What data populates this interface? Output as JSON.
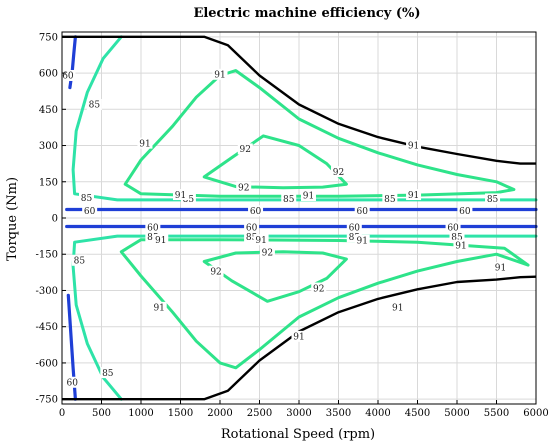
{
  "chart_data": {
    "type": "contour",
    "title": "Electric machine efficiency (%)",
    "xlabel": "Rotational Speed (rpm)",
    "ylabel": "Torque (Nm)",
    "xlim": [
      0,
      6000
    ],
    "ylim": [
      -770,
      770
    ],
    "xticks": [
      0,
      500,
      1000,
      1500,
      2000,
      2500,
      3000,
      3500,
      4000,
      4500,
      5000,
      5500,
      6000
    ],
    "yticks": [
      750,
      600,
      450,
      300,
      150,
      0,
      -150,
      -300,
      -450,
      -600,
      -750
    ],
    "grid": true,
    "colors": {
      "c60": "#1f3fd6",
      "c85": "#2ee3a8",
      "c91": "#2ee38a",
      "c92": "#2ee38a",
      "envelope": "#000000"
    },
    "envelope": [
      {
        "name": "max torque",
        "points": [
          [
            0,
            750
          ],
          [
            1800,
            750
          ],
          [
            2100,
            715
          ],
          [
            2500,
            590
          ],
          [
            3000,
            470
          ],
          [
            3500,
            390
          ],
          [
            4000,
            335
          ],
          [
            4500,
            295
          ],
          [
            5000,
            265
          ],
          [
            5500,
            237
          ],
          [
            5800,
            225
          ],
          [
            6000,
            225
          ]
        ]
      },
      {
        "name": "min torque",
        "points": [
          [
            0,
            -750
          ],
          [
            1800,
            -750
          ],
          [
            2100,
            -715
          ],
          [
            2500,
            -590
          ],
          [
            3000,
            -470
          ],
          [
            3500,
            -390
          ],
          [
            4000,
            -335
          ],
          [
            4500,
            -295
          ],
          [
            5000,
            -265
          ],
          [
            5500,
            -255
          ],
          [
            5800,
            -245
          ],
          [
            6000,
            -243
          ]
        ]
      }
    ],
    "contours": [
      {
        "level": 60,
        "color_key": "c60",
        "points": [
          [
            170,
            750
          ],
          [
            150,
            680
          ],
          [
            130,
            610
          ],
          [
            100,
            540
          ]
        ]
      },
      {
        "level": 60,
        "color_key": "c60",
        "points": [
          [
            60,
            35
          ],
          [
            6000,
            35
          ]
        ]
      },
      {
        "level": 60,
        "color_key": "c60",
        "points": [
          [
            60,
            -35
          ],
          [
            6000,
            -35
          ]
        ]
      },
      {
        "level": 60,
        "color_key": "c60",
        "points": [
          [
            80,
            -320
          ],
          [
            110,
            -470
          ],
          [
            140,
            -620
          ],
          [
            170,
            -750
          ]
        ]
      },
      {
        "level": 85,
        "color_key": "c85",
        "points": [
          [
            750,
            750
          ],
          [
            520,
            660
          ],
          [
            320,
            520
          ],
          [
            180,
            360
          ],
          [
            140,
            200
          ],
          [
            160,
            100
          ],
          [
            700,
            75
          ],
          [
            3000,
            75
          ],
          [
            6000,
            75
          ]
        ]
      },
      {
        "level": 85,
        "color_key": "c85",
        "points": [
          [
            6000,
            -75
          ],
          [
            3000,
            -75
          ],
          [
            700,
            -75
          ],
          [
            160,
            -100
          ],
          [
            140,
            -200
          ],
          [
            180,
            -360
          ],
          [
            320,
            -520
          ],
          [
            520,
            -660
          ],
          [
            750,
            -750
          ]
        ]
      },
      {
        "level": 91,
        "color_key": "c91",
        "closed": true,
        "points": [
          [
            2200,
            610
          ],
          [
            2500,
            540
          ],
          [
            3000,
            410
          ],
          [
            3500,
            330
          ],
          [
            4000,
            270
          ],
          [
            4500,
            220
          ],
          [
            5000,
            180
          ],
          [
            5500,
            150
          ],
          [
            5720,
            118
          ],
          [
            5500,
            105
          ],
          [
            4500,
            95
          ],
          [
            3500,
            90
          ],
          [
            2000,
            90
          ],
          [
            1000,
            100
          ],
          [
            800,
            140
          ],
          [
            1000,
            240
          ],
          [
            1400,
            380
          ],
          [
            1700,
            500
          ],
          [
            2000,
            590
          ]
        ]
      },
      {
        "level": 91,
        "color_key": "c91",
        "closed": true,
        "points": [
          [
            2200,
            -620
          ],
          [
            2500,
            -545
          ],
          [
            3000,
            -410
          ],
          [
            3500,
            -330
          ],
          [
            4000,
            -270
          ],
          [
            4500,
            -220
          ],
          [
            5000,
            -180
          ],
          [
            5500,
            -150
          ],
          [
            5900,
            -195
          ],
          [
            5600,
            -125
          ],
          [
            4500,
            -100
          ],
          [
            3500,
            -93
          ],
          [
            2000,
            -90
          ],
          [
            1000,
            -90
          ],
          [
            750,
            -140
          ],
          [
            1000,
            -240
          ],
          [
            1400,
            -390
          ],
          [
            1700,
            -510
          ],
          [
            2000,
            -600
          ]
        ]
      },
      {
        "level": 92,
        "color_key": "c92",
        "closed": true,
        "points": [
          [
            2550,
            340
          ],
          [
            3000,
            300
          ],
          [
            3350,
            225
          ],
          [
            3600,
            140
          ],
          [
            3300,
            128
          ],
          [
            2800,
            125
          ],
          [
            2200,
            130
          ],
          [
            1800,
            170
          ],
          [
            2150,
            250
          ]
        ]
      },
      {
        "level": 92,
        "color_key": "c92",
        "closed": true,
        "points": [
          [
            2600,
            -345
          ],
          [
            3000,
            -305
          ],
          [
            3350,
            -250
          ],
          [
            3600,
            -170
          ],
          [
            3300,
            -145
          ],
          [
            2800,
            -140
          ],
          [
            2200,
            -145
          ],
          [
            1800,
            -180
          ],
          [
            2150,
            -260
          ]
        ]
      }
    ],
    "labels": [
      {
        "text": "60",
        "x": 75,
        "y": 590,
        "level": 60
      },
      {
        "text": "60",
        "x": 350,
        "y": 30,
        "level": 60
      },
      {
        "text": "60",
        "x": 2450,
        "y": 30,
        "level": 60
      },
      {
        "text": "60",
        "x": 3800,
        "y": 30,
        "level": 60
      },
      {
        "text": "60",
        "x": 5100,
        "y": 30,
        "level": 60
      },
      {
        "text": "60",
        "x": 1150,
        "y": -38,
        "level": 60
      },
      {
        "text": "60",
        "x": 2400,
        "y": -38,
        "level": 60
      },
      {
        "text": "60",
        "x": 3700,
        "y": -38,
        "level": 60
      },
      {
        "text": "60",
        "x": 4950,
        "y": -38,
        "level": 60
      },
      {
        "text": "60",
        "x": 130,
        "y": -680,
        "level": 60
      },
      {
        "text": "85",
        "x": 410,
        "y": 470,
        "level": 85
      },
      {
        "text": "85",
        "x": 310,
        "y": 84,
        "level": 85
      },
      {
        "text": "85",
        "x": 1600,
        "y": 79,
        "level": 85
      },
      {
        "text": "85",
        "x": 2870,
        "y": 79,
        "level": 85
      },
      {
        "text": "85",
        "x": 4150,
        "y": 79,
        "level": 85
      },
      {
        "text": "85",
        "x": 5450,
        "y": 79,
        "level": 85
      },
      {
        "text": "85",
        "x": 1150,
        "y": -78,
        "level": 85
      },
      {
        "text": "85",
        "x": 2400,
        "y": -78,
        "level": 85
      },
      {
        "text": "85",
        "x": 3700,
        "y": -78,
        "level": 85
      },
      {
        "text": "85",
        "x": 5000,
        "y": -78,
        "level": 85
      },
      {
        "text": "85",
        "x": 220,
        "y": -175,
        "level": 85
      },
      {
        "text": "85",
        "x": 580,
        "y": -640,
        "level": 85
      },
      {
        "text": "91",
        "x": 2000,
        "y": 595,
        "level": 91
      },
      {
        "text": "91",
        "x": 1050,
        "y": 310,
        "level": 91
      },
      {
        "text": "91",
        "x": 4450,
        "y": 300,
        "level": 91
      },
      {
        "text": "91",
        "x": 1500,
        "y": 97,
        "level": 91
      },
      {
        "text": "91",
        "x": 3120,
        "y": 93,
        "level": 91
      },
      {
        "text": "91",
        "x": 4450,
        "y": 97,
        "level": 91
      },
      {
        "text": "91",
        "x": 1250,
        "y": -90,
        "level": 91
      },
      {
        "text": "91",
        "x": 2520,
        "y": -90,
        "level": 91
      },
      {
        "text": "91",
        "x": 3800,
        "y": -92,
        "level": 91
      },
      {
        "text": "91",
        "x": 5050,
        "y": -112,
        "level": 91
      },
      {
        "text": "91",
        "x": 5550,
        "y": -205,
        "level": 91
      },
      {
        "text": "91",
        "x": 1230,
        "y": -370,
        "level": 91
      },
      {
        "text": "91",
        "x": 4250,
        "y": -370,
        "level": 91
      },
      {
        "text": "91",
        "x": 3000,
        "y": -490,
        "level": 91
      },
      {
        "text": "92",
        "x": 2320,
        "y": 286,
        "level": 92
      },
      {
        "text": "92",
        "x": 3500,
        "y": 192,
        "level": 92
      },
      {
        "text": "92",
        "x": 2300,
        "y": 128,
        "level": 92
      },
      {
        "text": "92",
        "x": 2600,
        "y": -143,
        "level": 92
      },
      {
        "text": "92",
        "x": 1950,
        "y": -220,
        "level": 92
      },
      {
        "text": "92",
        "x": 3250,
        "y": -290,
        "level": 92
      }
    ]
  }
}
